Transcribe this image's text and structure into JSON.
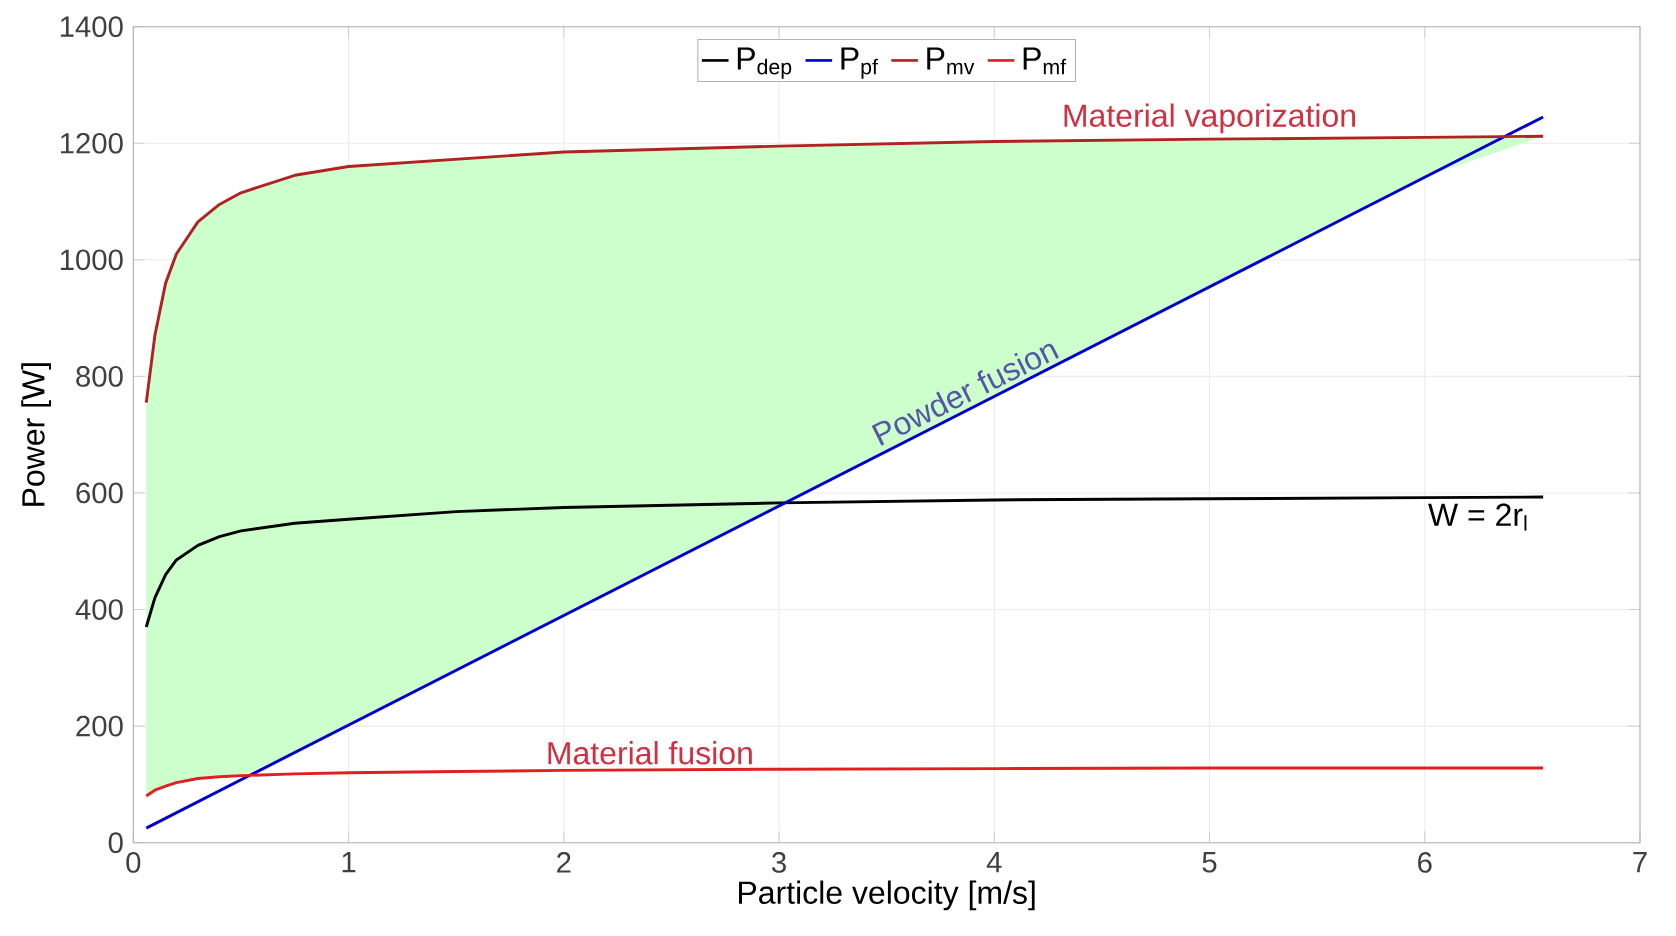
{
  "chart_data": {
    "type": "line",
    "xlabel": "Particle velocity [m/s]",
    "ylabel": "Power [W]",
    "x": [
      0.06,
      0.1,
      0.15,
      0.2,
      0.3,
      0.4,
      0.5,
      0.75,
      1,
      1.5,
      2,
      3,
      4,
      5,
      6,
      6.55
    ],
    "series": [
      {
        "name": "P$_{dep}$",
        "color": "#000000",
        "values": [
          370,
          420,
          460,
          485,
          510,
          525,
          535,
          548,
          555,
          568,
          575,
          583,
          588,
          590,
          592,
          593
        ]
      },
      {
        "name": "P$_{pf}$",
        "color": "#0000cc",
        "x": [
          0.06,
          6.55
        ],
        "values": [
          25,
          1245
        ]
      },
      {
        "name": "P$_{mv}$",
        "color": "#b22222",
        "x": [
          0.06,
          0.1,
          0.15,
          0.2,
          0.3,
          0.4,
          0.5,
          0.75,
          1,
          2,
          3,
          4,
          5,
          6,
          6.55
        ],
        "values": [
          755,
          870,
          960,
          1010,
          1065,
          1095,
          1115,
          1145,
          1160,
          1185,
          1195,
          1203,
          1207,
          1210,
          1212
        ],
        "lower": [
          80,
          90,
          97,
          103,
          110,
          113,
          115,
          155,
          202,
          390,
          578,
          766,
          954,
          1142,
          1212
        ],
        "upper": [
          755,
          870,
          960,
          1010,
          1065,
          1095,
          1115,
          1145,
          1160,
          1185,
          1195,
          1203,
          1207,
          1210,
          1212
        ]
      },
      {
        "name": "P$_{mf}$",
        "color": "#e02020",
        "values": [
          80,
          90,
          97,
          103,
          110,
          113,
          115,
          118,
          120,
          122,
          124,
          126,
          127,
          128,
          128,
          128
        ]
      }
    ],
    "annotations": [
      {
        "text": "Material vaporization",
        "x": 5,
        "y": 1207
      },
      {
        "text": "Powder fusion",
        "x": 3.9,
        "y": 747
      },
      {
        "text": "W = 2r$_{l}$",
        "x": 6,
        "y": 592
      },
      {
        "text": "Material fusion",
        "x": 2.4,
        "y": 124
      }
    ],
    "xlim": [
      0,
      7
    ],
    "xticks": [
      0,
      1,
      2,
      3,
      4,
      5,
      6,
      7
    ],
    "ylim": [
      0,
      1400
    ],
    "yticks": [
      0,
      200,
      400,
      600,
      800,
      1000,
      1200,
      1400
    ],
    "grid": true,
    "legend": "top"
  }
}
